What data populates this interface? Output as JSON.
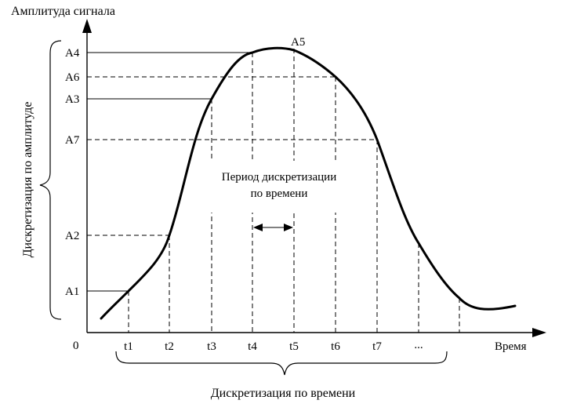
{
  "title": "Амплитуда сигнала",
  "x_axis_label": "Время",
  "origin_label": "0",
  "amplitude_sampling_label": "Дискретизация по амплитуде",
  "time_sampling_label": "Дискретизация по времени",
  "period_label_line1": "Период дискретизации",
  "period_label_line2": "по времени",
  "peak_label": "A5",
  "amplitude_levels": [
    {
      "label": "A4",
      "style": "solid"
    },
    {
      "label": "A6",
      "style": "dashed"
    },
    {
      "label": "A3",
      "style": "solid"
    },
    {
      "label": "A7",
      "style": "dashed"
    },
    {
      "label": "A2",
      "style": "dashed"
    },
    {
      "label": "A1",
      "style": "solid"
    }
  ],
  "time_ticks": [
    "t1",
    "t2",
    "t3",
    "t4",
    "t5",
    "t6",
    "t7",
    "..."
  ]
}
